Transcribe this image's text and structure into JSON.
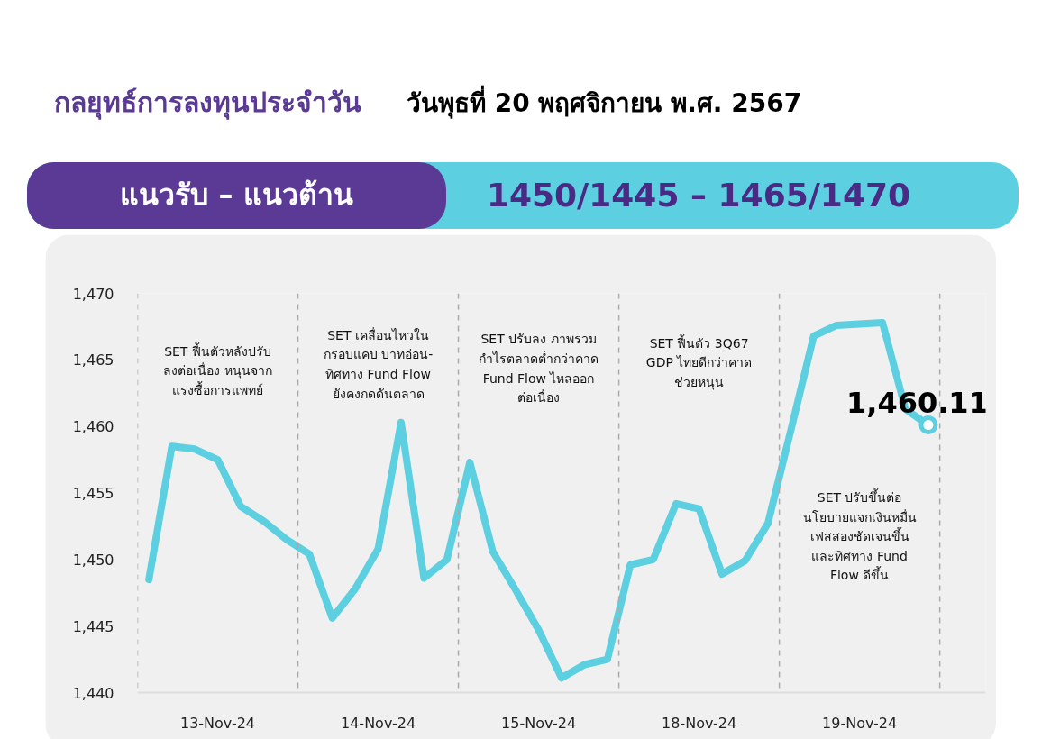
{
  "chart_data": {
    "type": "line",
    "title": "กลยุทธ์การลงทุนประจำวัน",
    "subtitle": "วันพุธที่ 20 พฤศจิกายน พ.ศ. 2567",
    "annotations": [
      "แนวรับ – แนวต้าน",
      "1450/1445 – 1465/1470",
      "SET ฟื้นตัวหลังปรับ\nลงต่อเนื่อง หนุนจาก\nแรงซื้อการแพทย์",
      "SET เคลื่อนไหวใน\nกรอบแคบ บาทอ่อน-\nทิศทาง Fund Flow\nยังคงกดดันตลาด",
      "SET ปรับลง ภาพรวม\nกำไรตลาดต่ำกว่าคาด\nFund Flow ไหลออก\nต่อเนื่อง",
      "SET ฟื้นตัว 3Q67\nGDP ไทยดีกว่าคาด\nช่วยหนุน",
      "SET ปรับขึ้นต่อ\nนโยบายแจกเงินหมื่น\nเฟสสองชัดเจนขึ้น\nและทิศทาง Fund\nFlow ดีขึ้น"
    ],
    "categories": [
      null,
      null,
      null,
      "13-Nov-24",
      null,
      null,
      null,
      null,
      null,
      null,
      "14-Nov-24",
      null,
      null,
      null,
      null,
      null,
      null,
      "15-Nov-24",
      null,
      null,
      null,
      null,
      null,
      null,
      "18-Nov-24",
      null,
      null,
      null,
      null,
      null,
      null,
      "19-Nov-24",
      null,
      null,
      null
    ],
    "series": [
      {
        "color": "#5ccfe0",
        "values": [
          1448.5,
          1458.5,
          1458.3,
          1457.5,
          1454.0,
          1452.9,
          1451.5,
          1450.4,
          1445.6,
          1447.8,
          1450.8,
          1460.3,
          1448.6,
          1450.0,
          1457.3,
          1450.6,
          1447.7,
          1444.7,
          1441.1,
          1442.1,
          1442.5,
          1449.6,
          1450.0,
          1454.2,
          1453.8,
          1448.9,
          1449.9,
          1452.7,
          1459.7,
          1466.8,
          1467.6,
          1467.7,
          1467.8,
          1461.3,
          1460.11
        ]
      },
      {
        "type": "scatter",
        "marker": "circle",
        "color": "#5ccfe0",
        "values": [
          null,
          null,
          null,
          null,
          null,
          null,
          null,
          null,
          null,
          null,
          null,
          null,
          null,
          null,
          null,
          null,
          null,
          null,
          null,
          null,
          null,
          null,
          null,
          null,
          null,
          null,
          null,
          null,
          null,
          null,
          null,
          null,
          null,
          null,
          1460.11
        ],
        "value_labels": [
          null,
          null,
          null,
          null,
          null,
          null,
          null,
          null,
          null,
          null,
          null,
          null,
          null,
          null,
          null,
          null,
          null,
          null,
          null,
          null,
          null,
          null,
          null,
          null,
          null,
          null,
          null,
          null,
          null,
          null,
          null,
          null,
          null,
          null,
          "1,460.11"
        ]
      }
    ],
    "ylim": [
      1440,
      1470
    ],
    "yticks": [
      {
        "value": 1440,
        "label": "1,440"
      },
      {
        "value": 1445,
        "label": "1,445"
      },
      {
        "value": 1450,
        "label": "1,450"
      },
      {
        "value": 1455,
        "label": "1,455"
      },
      {
        "value": 1460,
        "label": "1,460"
      },
      {
        "value": 1465,
        "label": "1,465"
      },
      {
        "value": 1470,
        "label": "1,470"
      }
    ],
    "grid": false,
    "line_style": "solid"
  }
}
